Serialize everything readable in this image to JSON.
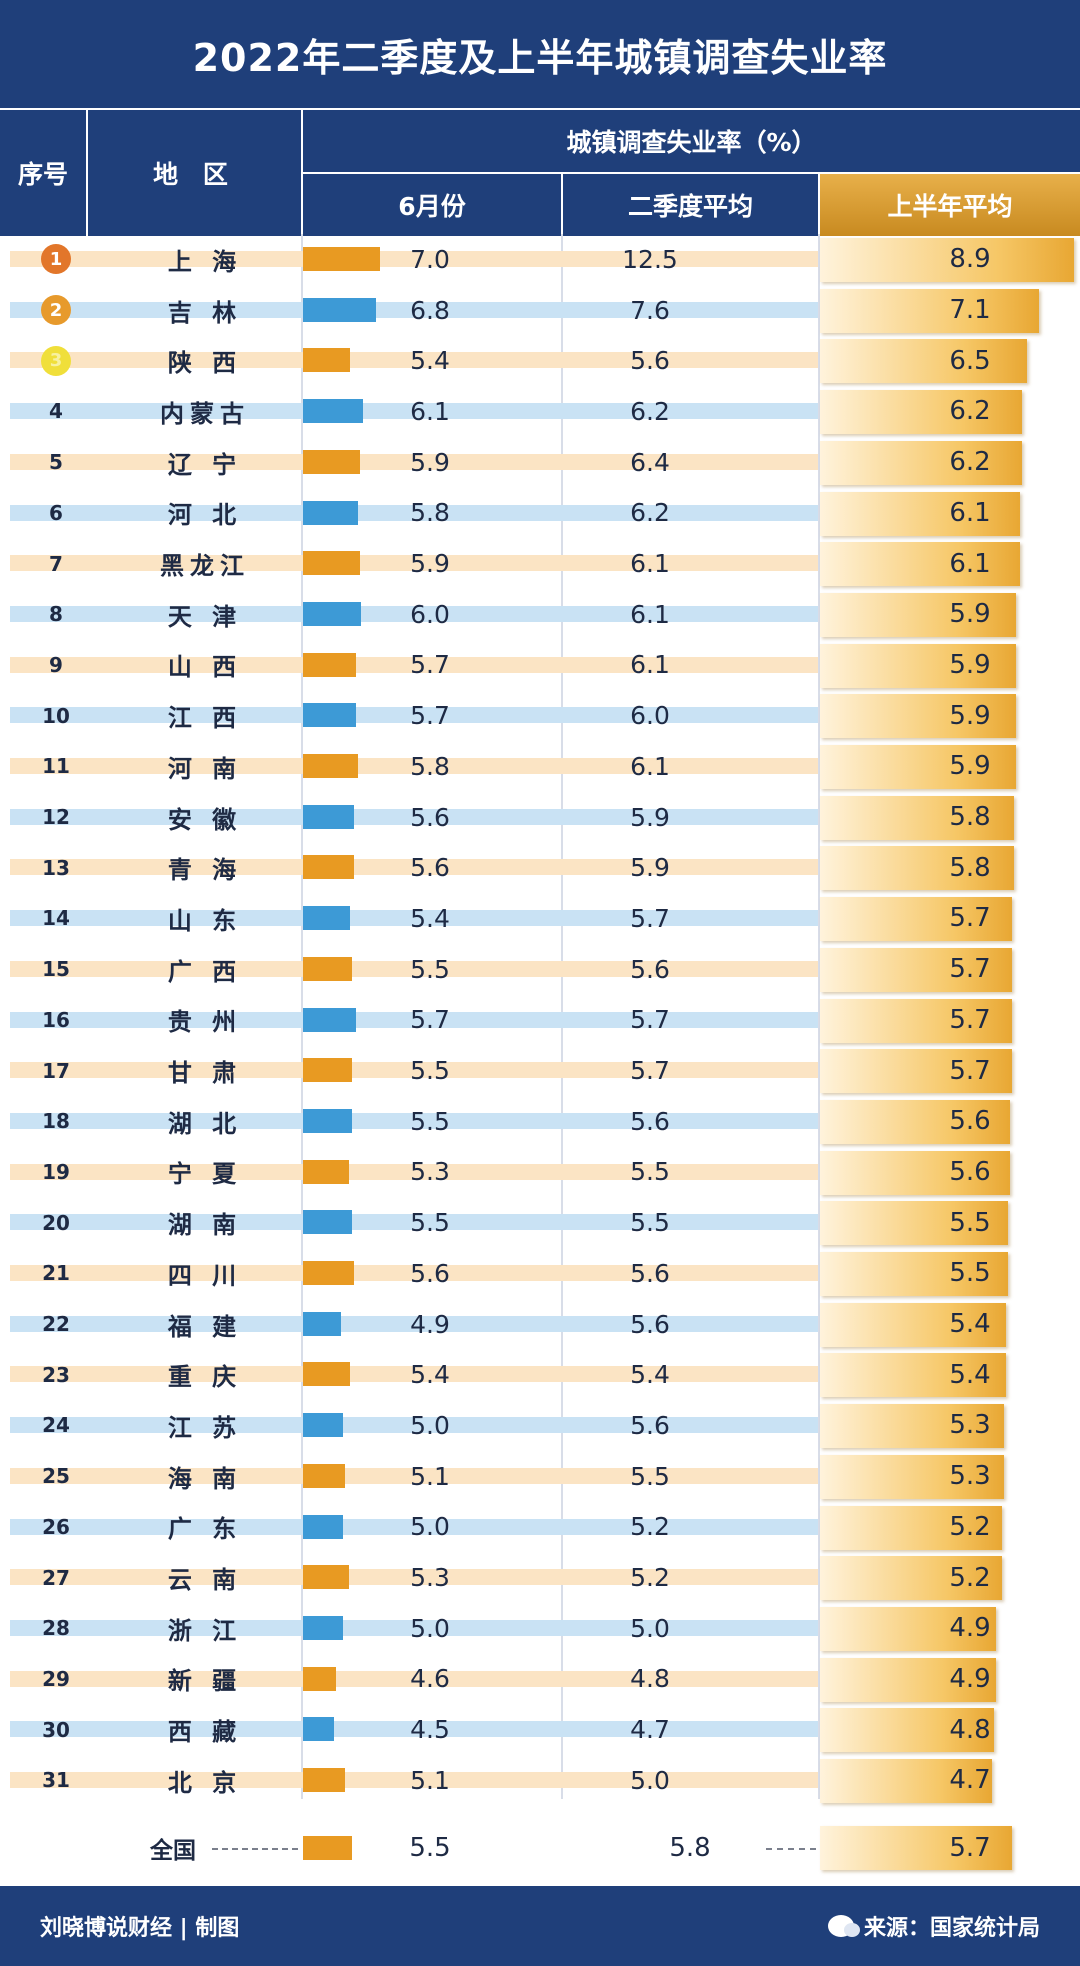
{
  "title": "2022年二季度及上半年城镇调查失业率",
  "header": {
    "rank_label": "序号",
    "region_label": "地 区",
    "group_label": "城镇调查失业率（%）",
    "june_label": "6月份",
    "q2_label": "二季度平均",
    "h1_label": "上半年平均"
  },
  "colors": {
    "navy": "#1f3f7a",
    "orange_bar": "#e89a22",
    "blue_bar": "#3d9ad6",
    "gold": "#e8a733"
  },
  "chart_data": {
    "type": "table",
    "title": "2022年二季度及上半年城镇调查失业率",
    "unit": "%",
    "columns": [
      "序号",
      "地 区",
      "6月份",
      "二季度平均",
      "上半年平均"
    ],
    "rows": [
      {
        "rank": "1",
        "region": "上 海",
        "june": "7.0",
        "q2": "12.5",
        "h1": "8.9"
      },
      {
        "rank": "2",
        "region": "吉 林",
        "june": "6.8",
        "q2": "7.6",
        "h1": "7.1"
      },
      {
        "rank": "3",
        "region": "陕 西",
        "june": "5.4",
        "q2": "5.6",
        "h1": "6.5"
      },
      {
        "rank": "4",
        "region": "内蒙古",
        "june": "6.1",
        "q2": "6.2",
        "h1": "6.2"
      },
      {
        "rank": "5",
        "region": "辽 宁",
        "june": "5.9",
        "q2": "6.4",
        "h1": "6.2"
      },
      {
        "rank": "6",
        "region": "河 北",
        "june": "5.8",
        "q2": "6.2",
        "h1": "6.1"
      },
      {
        "rank": "7",
        "region": "黑龙江",
        "june": "5.9",
        "q2": "6.1",
        "h1": "6.1"
      },
      {
        "rank": "8",
        "region": "天 津",
        "june": "6.0",
        "q2": "6.1",
        "h1": "5.9"
      },
      {
        "rank": "9",
        "region": "山 西",
        "june": "5.7",
        "q2": "6.1",
        "h1": "5.9"
      },
      {
        "rank": "10",
        "region": "江 西",
        "june": "5.7",
        "q2": "6.0",
        "h1": "5.9"
      },
      {
        "rank": "11",
        "region": "河 南",
        "june": "5.8",
        "q2": "6.1",
        "h1": "5.9"
      },
      {
        "rank": "12",
        "region": "安 徽",
        "june": "5.6",
        "q2": "5.9",
        "h1": "5.8"
      },
      {
        "rank": "13",
        "region": "青 海",
        "june": "5.6",
        "q2": "5.9",
        "h1": "5.8"
      },
      {
        "rank": "14",
        "region": "山 东",
        "june": "5.4",
        "q2": "5.7",
        "h1": "5.7"
      },
      {
        "rank": "15",
        "region": "广 西",
        "june": "5.5",
        "q2": "5.6",
        "h1": "5.7"
      },
      {
        "rank": "16",
        "region": "贵 州",
        "june": "5.7",
        "q2": "5.7",
        "h1": "5.7"
      },
      {
        "rank": "17",
        "region": "甘 肃",
        "june": "5.5",
        "q2": "5.7",
        "h1": "5.7"
      },
      {
        "rank": "18",
        "region": "湖 北",
        "june": "5.5",
        "q2": "5.6",
        "h1": "5.6"
      },
      {
        "rank": "19",
        "region": "宁 夏",
        "june": "5.3",
        "q2": "5.5",
        "h1": "5.6"
      },
      {
        "rank": "20",
        "region": "湖 南",
        "june": "5.5",
        "q2": "5.5",
        "h1": "5.5"
      },
      {
        "rank": "21",
        "region": "四 川",
        "june": "5.6",
        "q2": "5.6",
        "h1": "5.5"
      },
      {
        "rank": "22",
        "region": "福 建",
        "june": "4.9",
        "q2": "5.6",
        "h1": "5.4"
      },
      {
        "rank": "23",
        "region": "重 庆",
        "june": "5.4",
        "q2": "5.4",
        "h1": "5.4"
      },
      {
        "rank": "24",
        "region": "江 苏",
        "june": "5.0",
        "q2": "5.6",
        "h1": "5.3"
      },
      {
        "rank": "25",
        "region": "海 南",
        "june": "5.1",
        "q2": "5.5",
        "h1": "5.3"
      },
      {
        "rank": "26",
        "region": "广 东",
        "june": "5.0",
        "q2": "5.2",
        "h1": "5.2"
      },
      {
        "rank": "27",
        "region": "云 南",
        "june": "5.3",
        "q2": "5.2",
        "h1": "5.2"
      },
      {
        "rank": "28",
        "region": "浙 江",
        "june": "5.0",
        "q2": "5.0",
        "h1": "4.9"
      },
      {
        "rank": "29",
        "region": "新 疆",
        "june": "4.6",
        "q2": "4.8",
        "h1": "4.9"
      },
      {
        "rank": "30",
        "region": "西 藏",
        "june": "4.5",
        "q2": "4.7",
        "h1": "4.8"
      },
      {
        "rank": "31",
        "region": "北 京",
        "june": "5.1",
        "q2": "5.0",
        "h1": "4.7"
      }
    ],
    "national": {
      "label": "全国",
      "june": "5.5",
      "q2": "5.8",
      "h1": "5.7"
    }
  },
  "footer": {
    "credit": "刘晓博说财经 | 制图",
    "source": "来源：国家统计局"
  }
}
